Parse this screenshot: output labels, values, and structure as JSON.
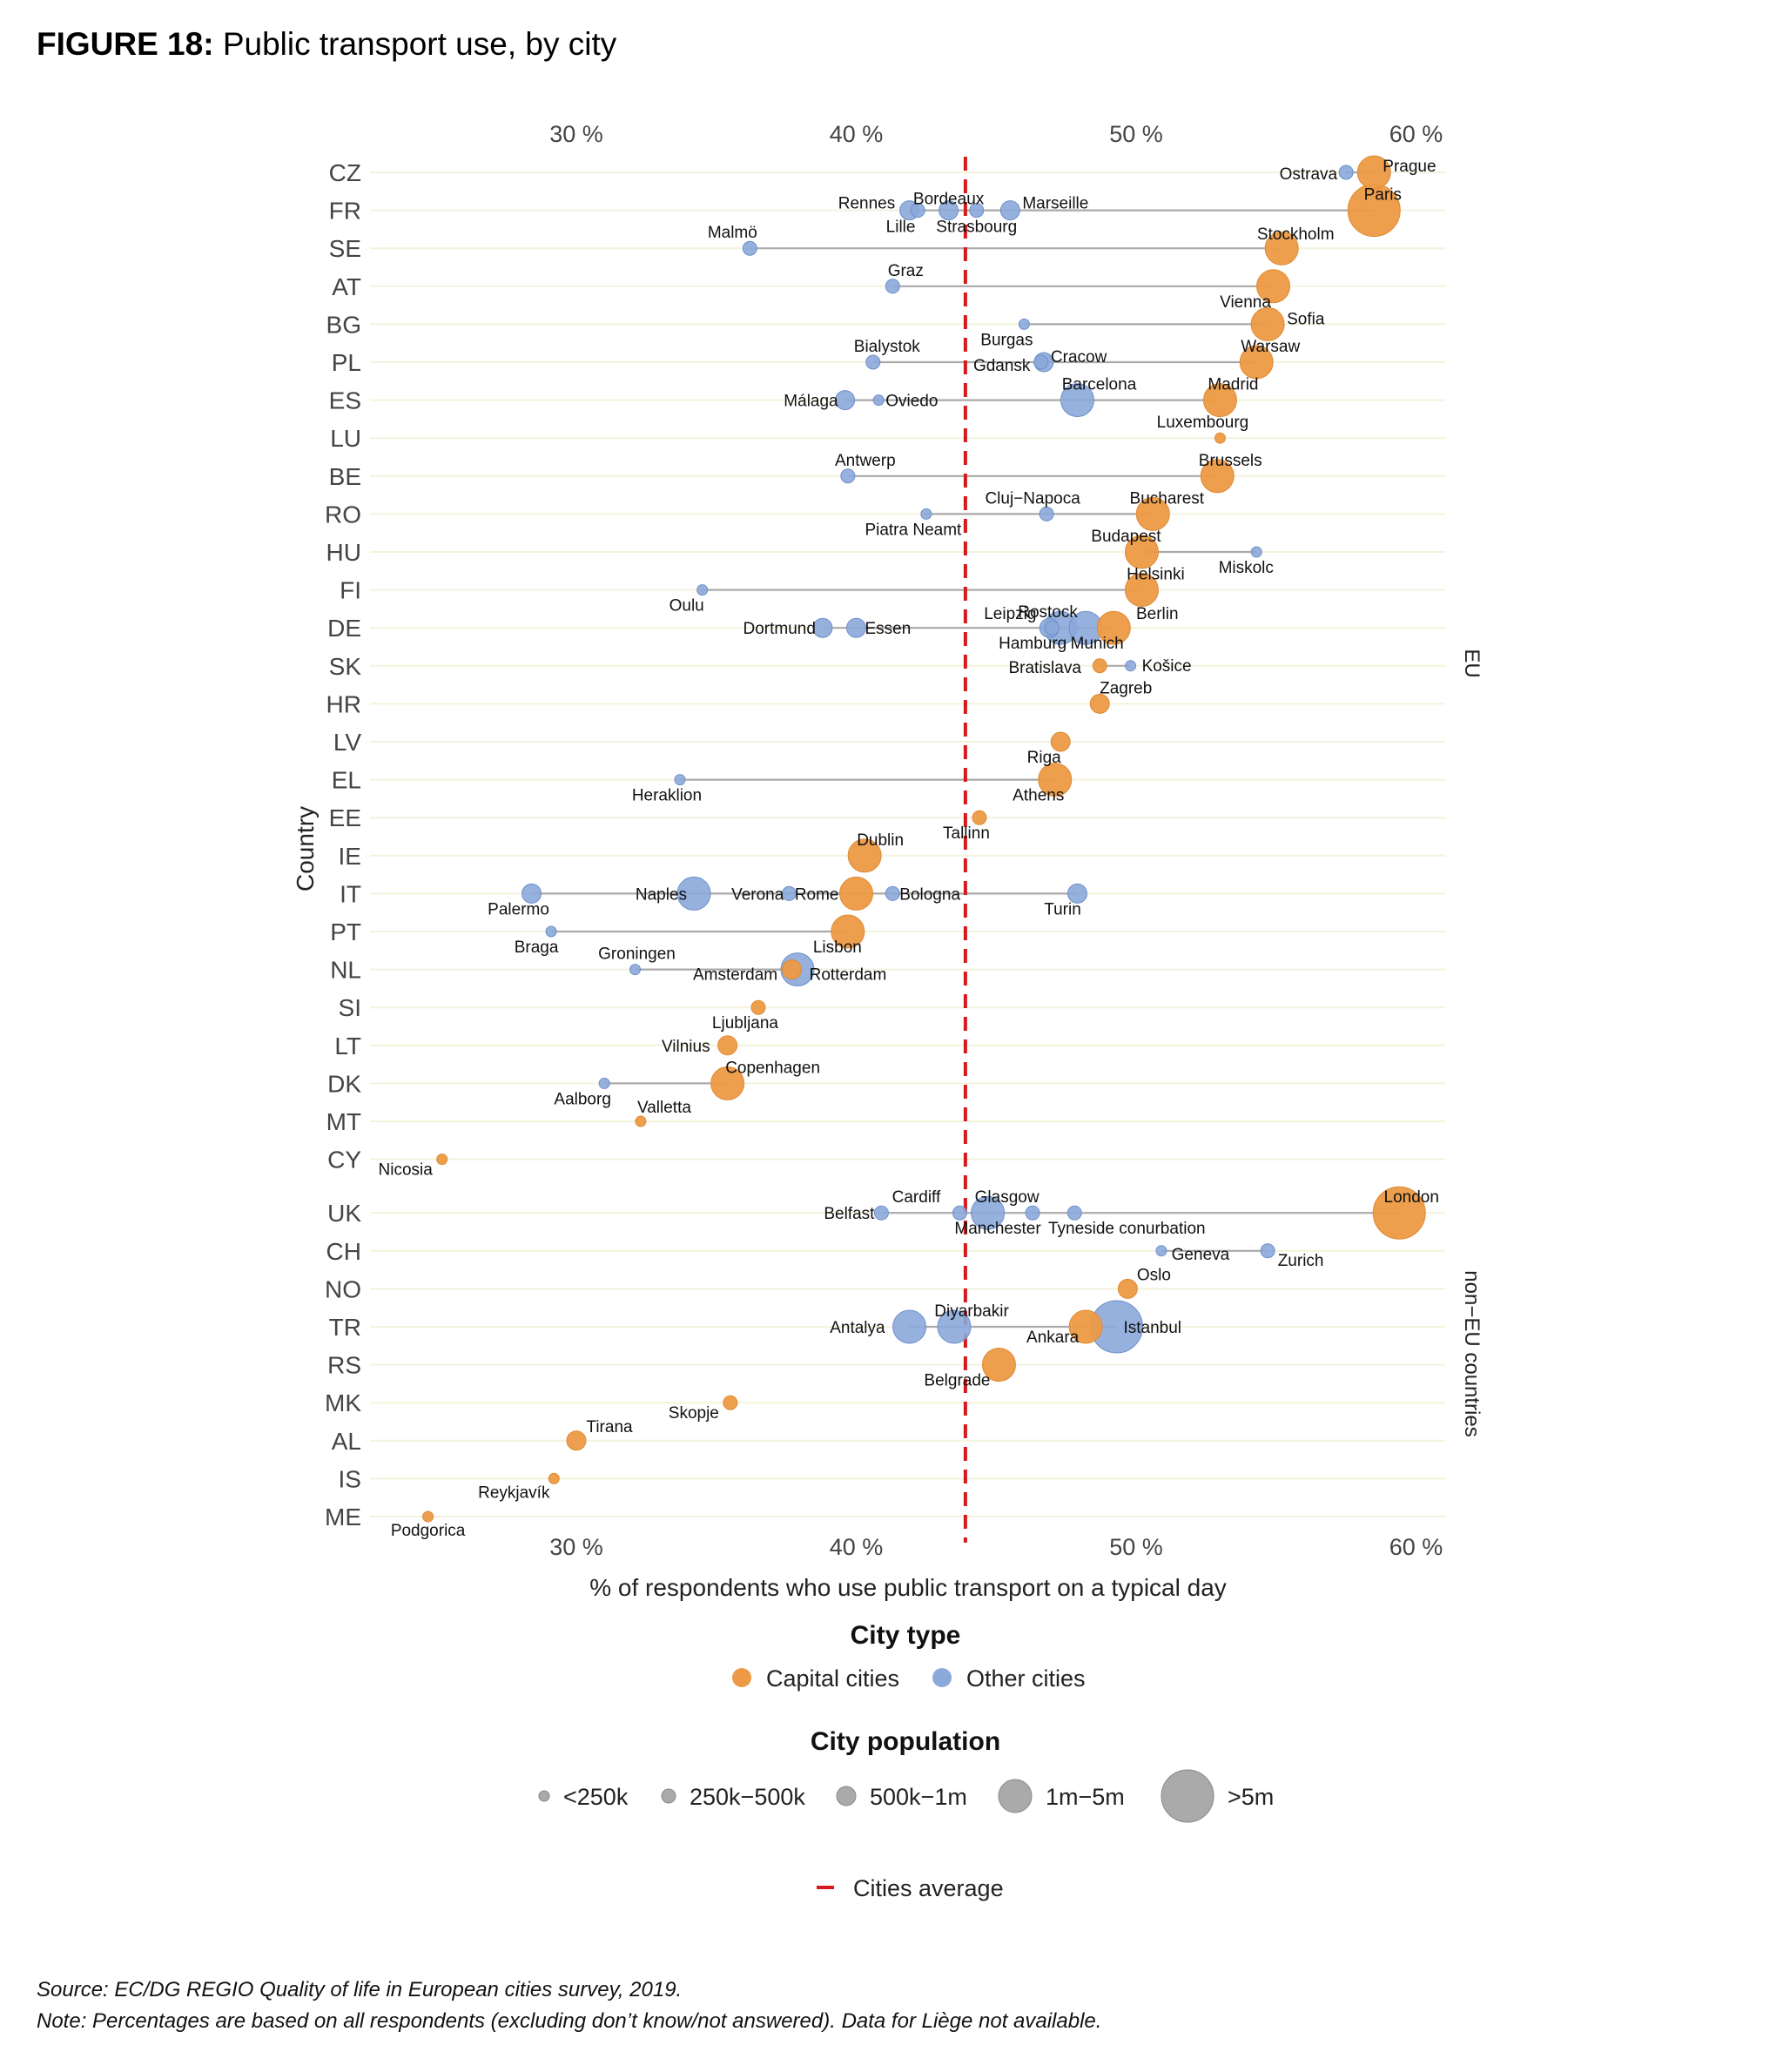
{
  "figure": {
    "number": "FIGURE 18:",
    "title": "Public transport use, by city"
  },
  "footer": {
    "source": "Source: EC/DG REGIO Quality of life in European cities survey, 2019.",
    "note": "Note: Percentages are based on all respondents (excluding don’t know/not answered). Data for Liège not available."
  },
  "chart_data": {
    "type": "scatter",
    "xlabel": "% of respondents who use public transport on a typical day",
    "ylabel": "Country",
    "xlim": [
      22,
      61.5
    ],
    "xticks": [
      30,
      40,
      50,
      60
    ],
    "xtick_labels": [
      "30 %",
      "40 %",
      "50 %",
      "60 %"
    ],
    "average": 43.9,
    "colors": {
      "capital": "#EC9A45",
      "other": "#8BA9DA",
      "other_stroke": "#6E8FC8",
      "average": "#D7191C",
      "connector": "#aaaaaa",
      "gridline": "#F5F2DC"
    },
    "legend": {
      "city_type_title": "City type",
      "city_type": [
        {
          "key": "capital",
          "label": "Capital cities"
        },
        {
          "key": "other",
          "label": "Other cities"
        }
      ],
      "population_title": "City population",
      "population": [
        {
          "key": 1,
          "label": "<250k"
        },
        {
          "key": 2,
          "label": "250k−500k"
        },
        {
          "key": 3,
          "label": "500k−1m"
        },
        {
          "key": 4,
          "label": "1m−5m"
        },
        {
          "key": 5,
          "label": ">5m"
        }
      ],
      "average_label": "Cities average"
    },
    "groups": [
      {
        "label": "EU",
        "countries": [
          "CZ",
          "FR",
          "SE",
          "AT",
          "BG",
          "PL",
          "ES",
          "LU",
          "BE",
          "RO",
          "HU",
          "FI",
          "DE",
          "SK",
          "HR",
          "LV",
          "EL",
          "EE",
          "IE",
          "IT",
          "PT",
          "NL",
          "SI",
          "LT",
          "DK",
          "MT",
          "CY"
        ]
      },
      {
        "label": "non−EU countries",
        "countries": [
          "UK",
          "CH",
          "NO",
          "TR",
          "RS",
          "MK",
          "AL",
          "IS",
          "ME"
        ]
      }
    ],
    "countries": [
      {
        "code": "CZ",
        "cities": [
          {
            "name": "Ostrava",
            "value": 57.5,
            "type": "other",
            "pop": 2
          },
          {
            "name": "Prague",
            "value": 58.5,
            "type": "capital",
            "pop": 4
          }
        ]
      },
      {
        "code": "FR",
        "cities": [
          {
            "name": "Rennes",
            "value": 42.2,
            "type": "other",
            "pop": 2
          },
          {
            "name": "Lille",
            "value": 41.9,
            "type": "other",
            "pop": 3
          },
          {
            "name": "Bordeaux",
            "value": 43.3,
            "type": "other",
            "pop": 3
          },
          {
            "name": "Strasbourg",
            "value": 44.3,
            "type": "other",
            "pop": 2
          },
          {
            "name": "Marseille",
            "value": 45.5,
            "type": "other",
            "pop": 3
          },
          {
            "name": "Paris",
            "value": 58.5,
            "type": "capital",
            "pop": 5
          }
        ]
      },
      {
        "code": "SE",
        "cities": [
          {
            "name": "Malmö",
            "value": 36.2,
            "type": "other",
            "pop": 2
          },
          {
            "name": "Stockholm",
            "value": 55.2,
            "type": "capital",
            "pop": 4
          }
        ]
      },
      {
        "code": "AT",
        "cities": [
          {
            "name": "Graz",
            "value": 41.3,
            "type": "other",
            "pop": 2
          },
          {
            "name": "Vienna",
            "value": 54.9,
            "type": "capital",
            "pop": 4
          }
        ]
      },
      {
        "code": "BG",
        "cities": [
          {
            "name": "Burgas",
            "value": 46.0,
            "type": "other",
            "pop": 1
          },
          {
            "name": "Sofia",
            "value": 54.7,
            "type": "capital",
            "pop": 4
          }
        ]
      },
      {
        "code": "PL",
        "cities": [
          {
            "name": "Bialystok",
            "value": 40.6,
            "type": "other",
            "pop": 2
          },
          {
            "name": "Gdansk",
            "value": 46.6,
            "type": "other",
            "pop": 2
          },
          {
            "name": "Cracow",
            "value": 46.7,
            "type": "other",
            "pop": 3
          },
          {
            "name": "Warsaw",
            "value": 54.3,
            "type": "capital",
            "pop": 4
          }
        ]
      },
      {
        "code": "ES",
        "cities": [
          {
            "name": "Málaga",
            "value": 39.6,
            "type": "other",
            "pop": 3
          },
          {
            "name": "Oviedo",
            "value": 40.8,
            "type": "other",
            "pop": 1
          },
          {
            "name": "Barcelona",
            "value": 47.9,
            "type": "other",
            "pop": 4
          },
          {
            "name": "Madrid",
            "value": 53.0,
            "type": "capital",
            "pop": 4
          }
        ]
      },
      {
        "code": "LU",
        "cities": [
          {
            "name": "Luxembourg",
            "value": 53.0,
            "type": "capital",
            "pop": 1
          }
        ]
      },
      {
        "code": "BE",
        "cities": [
          {
            "name": "Antwerp",
            "value": 39.7,
            "type": "other",
            "pop": 2
          },
          {
            "name": "Brussels",
            "value": 52.9,
            "type": "capital",
            "pop": 4
          }
        ]
      },
      {
        "code": "RO",
        "cities": [
          {
            "name": "Piatra Neamt",
            "value": 42.5,
            "type": "other",
            "pop": 1
          },
          {
            "name": "Cluj−Napoca",
            "value": 46.8,
            "type": "other",
            "pop": 2
          },
          {
            "name": "Bucharest",
            "value": 50.6,
            "type": "capital",
            "pop": 4
          }
        ]
      },
      {
        "code": "HU",
        "cities": [
          {
            "name": "Budapest",
            "value": 50.2,
            "type": "capital",
            "pop": 4
          },
          {
            "name": "Miskolc",
            "value": 54.3,
            "type": "other",
            "pop": 1
          }
        ]
      },
      {
        "code": "FI",
        "cities": [
          {
            "name": "Oulu",
            "value": 34.5,
            "type": "other",
            "pop": 1
          },
          {
            "name": "Helsinki",
            "value": 50.2,
            "type": "capital",
            "pop": 4
          }
        ]
      },
      {
        "code": "DE",
        "cities": [
          {
            "name": "Dortmund",
            "value": 38.8,
            "type": "other",
            "pop": 3
          },
          {
            "name": "Essen",
            "value": 40.0,
            "type": "other",
            "pop": 3
          },
          {
            "name": "Leipzig",
            "value": 46.9,
            "type": "other",
            "pop": 3
          },
          {
            "name": "Hamburg",
            "value": 47.3,
            "type": "other",
            "pop": 4
          },
          {
            "name": "Rostock",
            "value": 47.0,
            "type": "other",
            "pop": 2
          },
          {
            "name": "Munich",
            "value": 48.2,
            "type": "other",
            "pop": 4
          },
          {
            "name": "Berlin",
            "value": 49.2,
            "type": "capital",
            "pop": 4
          }
        ]
      },
      {
        "code": "SK",
        "cities": [
          {
            "name": "Bratislava",
            "value": 48.7,
            "type": "capital",
            "pop": 2
          },
          {
            "name": "Košice",
            "value": 49.8,
            "type": "other",
            "pop": 1
          }
        ]
      },
      {
        "code": "HR",
        "cities": [
          {
            "name": "Zagreb",
            "value": 48.7,
            "type": "capital",
            "pop": 3
          }
        ]
      },
      {
        "code": "LV",
        "cities": [
          {
            "name": "Riga",
            "value": 47.3,
            "type": "capital",
            "pop": 3
          }
        ]
      },
      {
        "code": "EL",
        "cities": [
          {
            "name": "Heraklion",
            "value": 33.7,
            "type": "other",
            "pop": 1
          },
          {
            "name": "Athens",
            "value": 47.1,
            "type": "capital",
            "pop": 4
          }
        ]
      },
      {
        "code": "EE",
        "cities": [
          {
            "name": "Tallinn",
            "value": 44.4,
            "type": "capital",
            "pop": 2
          }
        ]
      },
      {
        "code": "IE",
        "cities": [
          {
            "name": "Dublin",
            "value": 40.3,
            "type": "capital",
            "pop": 4
          }
        ]
      },
      {
        "code": "IT",
        "cities": [
          {
            "name": "Palermo",
            "value": 28.4,
            "type": "other",
            "pop": 3
          },
          {
            "name": "Naples",
            "value": 34.2,
            "type": "other",
            "pop": 4
          },
          {
            "name": "Verona",
            "value": 37.6,
            "type": "other",
            "pop": 2
          },
          {
            "name": "Rome",
            "value": 40.0,
            "type": "capital",
            "pop": 4
          },
          {
            "name": "Bologna",
            "value": 41.3,
            "type": "other",
            "pop": 2
          },
          {
            "name": "Turin",
            "value": 47.9,
            "type": "other",
            "pop": 3
          }
        ]
      },
      {
        "code": "PT",
        "cities": [
          {
            "name": "Braga",
            "value": 29.1,
            "type": "other",
            "pop": 1
          },
          {
            "name": "Lisbon",
            "value": 39.7,
            "type": "capital",
            "pop": 4
          }
        ]
      },
      {
        "code": "NL",
        "cities": [
          {
            "name": "Groningen",
            "value": 32.1,
            "type": "other",
            "pop": 1
          },
          {
            "name": "Amsterdam",
            "value": 37.7,
            "type": "capital",
            "pop": 3
          },
          {
            "name": "Rotterdam",
            "value": 37.9,
            "type": "other",
            "pop": 4
          }
        ]
      },
      {
        "code": "SI",
        "cities": [
          {
            "name": "Ljubljana",
            "value": 36.5,
            "type": "capital",
            "pop": 2
          }
        ]
      },
      {
        "code": "LT",
        "cities": [
          {
            "name": "Vilnius",
            "value": 35.4,
            "type": "capital",
            "pop": 3
          }
        ]
      },
      {
        "code": "DK",
        "cities": [
          {
            "name": "Aalborg",
            "value": 31.0,
            "type": "other",
            "pop": 1
          },
          {
            "name": "Copenhagen",
            "value": 35.4,
            "type": "capital",
            "pop": 4
          }
        ]
      },
      {
        "code": "MT",
        "cities": [
          {
            "name": "Valletta",
            "value": 32.3,
            "type": "capital",
            "pop": 1
          }
        ]
      },
      {
        "code": "CY",
        "cities": [
          {
            "name": "Nicosia",
            "value": 25.2,
            "type": "capital",
            "pop": 1
          }
        ]
      },
      {
        "code": "UK",
        "cities": [
          {
            "name": "Belfast",
            "value": 40.9,
            "type": "other",
            "pop": 2
          },
          {
            "name": "Cardiff",
            "value": 43.7,
            "type": "other",
            "pop": 2
          },
          {
            "name": "Glasgow",
            "value": 44.7,
            "type": "other",
            "pop": 4
          },
          {
            "name": "Manchester",
            "value": 46.3,
            "type": "other",
            "pop": 2
          },
          {
            "name": "Tyneside conurbation",
            "value": 47.8,
            "type": "other",
            "pop": 2
          },
          {
            "name": "London",
            "value": 59.4,
            "type": "capital",
            "pop": 5
          }
        ]
      },
      {
        "code": "CH",
        "cities": [
          {
            "name": "Geneva",
            "value": 50.9,
            "type": "other",
            "pop": 1
          },
          {
            "name": "Zurich",
            "value": 54.7,
            "type": "other",
            "pop": 2
          }
        ]
      },
      {
        "code": "NO",
        "cities": [
          {
            "name": "Oslo",
            "value": 49.7,
            "type": "capital",
            "pop": 3
          }
        ]
      },
      {
        "code": "TR",
        "cities": [
          {
            "name": "Antalya",
            "value": 41.9,
            "type": "other",
            "pop": 4
          },
          {
            "name": "Diyarbakir",
            "value": 43.5,
            "type": "other",
            "pop": 4
          },
          {
            "name": "Ankara",
            "value": 48.2,
            "type": "capital",
            "pop": 4
          },
          {
            "name": "Istanbul",
            "value": 49.3,
            "type": "other",
            "pop": 5
          }
        ]
      },
      {
        "code": "RS",
        "cities": [
          {
            "name": "Belgrade",
            "value": 45.1,
            "type": "capital",
            "pop": 4
          }
        ]
      },
      {
        "code": "MK",
        "cities": [
          {
            "name": "Skopje",
            "value": 35.5,
            "type": "capital",
            "pop": 2
          }
        ]
      },
      {
        "code": "AL",
        "cities": [
          {
            "name": "Tirana",
            "value": 30.0,
            "type": "capital",
            "pop": 3
          }
        ]
      },
      {
        "code": "IS",
        "cities": [
          {
            "name": "Reykjavík",
            "value": 29.2,
            "type": "capital",
            "pop": 1
          }
        ]
      },
      {
        "code": "ME",
        "cities": [
          {
            "name": "Podgorica",
            "value": 24.7,
            "type": "capital",
            "pop": 1
          }
        ]
      }
    ]
  }
}
